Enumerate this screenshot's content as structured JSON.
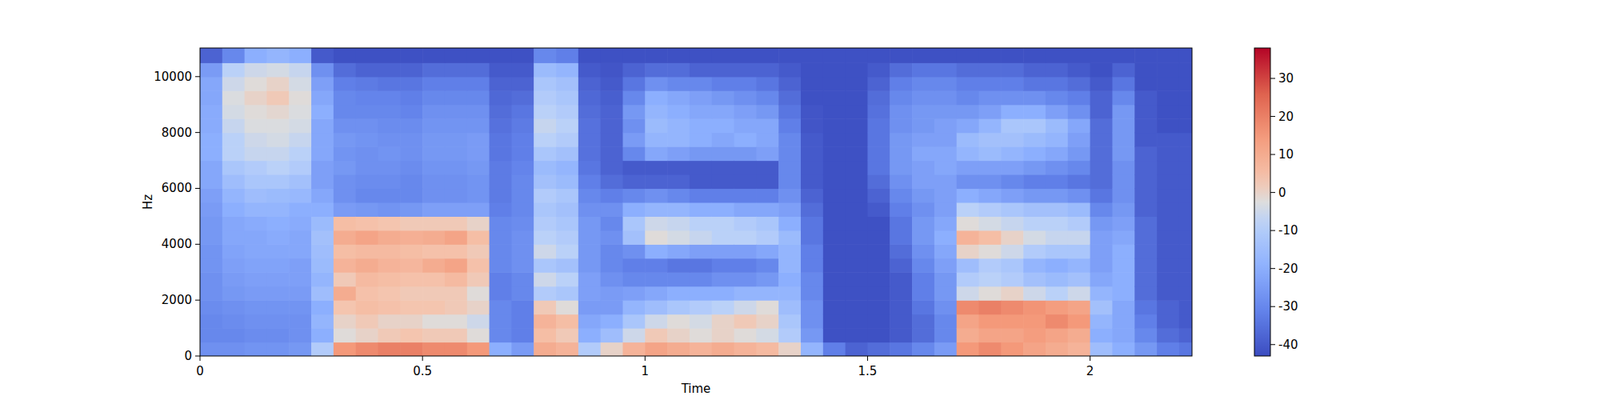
{
  "chart_data": {
    "type": "heatmap",
    "x_label": "Time",
    "y_label": "Hz",
    "xlim": [
      0,
      2.229
    ],
    "ylim": [
      0,
      11025
    ],
    "xticks": [
      0,
      0.5,
      1,
      1.5,
      2
    ],
    "yticks": [
      0,
      2000,
      4000,
      6000,
      8000,
      10000
    ],
    "x_edges": [
      0,
      0.05,
      0.1,
      0.15,
      0.2,
      0.25,
      0.3,
      0.35,
      0.4,
      0.45,
      0.5,
      0.55,
      0.6,
      0.65,
      0.7,
      0.75,
      0.8,
      0.85,
      0.9,
      0.95,
      1,
      1.05,
      1.1,
      1.15,
      1.2,
      1.25,
      1.3,
      1.35,
      1.4,
      1.45,
      1.5,
      1.55,
      1.6,
      1.65,
      1.7,
      1.75,
      1.8,
      1.85,
      1.9,
      1.95,
      2,
      2.05,
      2.1,
      2.15,
      2.2,
      2.25
    ],
    "y_edges": [
      0,
      500,
      1000,
      1500,
      2000,
      2500,
      3000,
      3500,
      4000,
      4500,
      5000,
      5500,
      6000,
      6500,
      7000,
      7500,
      8000,
      8500,
      9000,
      9500,
      10000,
      10500,
      11025
    ],
    "cells": [
      [
        -28,
        -30,
        -30,
        -29,
        -28,
        -28,
        -27,
        -27,
        -26,
        -26,
        -25,
        -24,
        -22,
        -22,
        -20,
        -20,
        -21,
        -21,
        -22,
        -22,
        -25,
        -38
      ],
      [
        -28,
        -30,
        -29,
        -28,
        -26,
        -25,
        -24,
        -23,
        -22,
        -22,
        -20,
        -18,
        -15,
        -12,
        -8,
        -8,
        -6,
        -4,
        -3,
        -5,
        -8,
        -30
      ],
      [
        -27,
        -29,
        -28,
        -27,
        -25,
        -24,
        -23,
        -22,
        -22,
        -21,
        -18,
        -15,
        -12,
        -10,
        -6,
        -5,
        -3,
        -2,
        0,
        -2,
        -5,
        -20
      ],
      [
        -27,
        -29,
        -28,
        -27,
        -25,
        -24,
        -23,
        -22,
        -21,
        -20,
        -18,
        -16,
        -12,
        -8,
        -6,
        -4,
        -3,
        -1,
        2,
        0,
        -4,
        -18
      ],
      [
        -26,
        -28,
        -28,
        -27,
        -25,
        -24,
        -24,
        -22,
        -22,
        -21,
        -20,
        -17,
        -14,
        -10,
        -8,
        -6,
        -4,
        -3,
        -2,
        -4,
        -6,
        -20
      ],
      [
        -10,
        -20,
        -18,
        -20,
        -15,
        -18,
        -16,
        -15,
        -14,
        -16,
        -20,
        -22,
        -24,
        -24,
        -22,
        -22,
        -22,
        -20,
        -22,
        -24,
        -28,
        -40
      ],
      [
        15,
        -2,
        0,
        3,
        10,
        2,
        8,
        5,
        10,
        5,
        -25,
        -28,
        -28,
        -26,
        -27,
        -26,
        -28,
        -30,
        -30,
        -32,
        -36,
        -42
      ],
      [
        18,
        0,
        2,
        5,
        4,
        6,
        10,
        6,
        12,
        4,
        -26,
        -30,
        -29,
        -28,
        -28,
        -27,
        -28,
        -30,
        -31,
        -33,
        -38,
        -42
      ],
      [
        20,
        2,
        0,
        4,
        3,
        5,
        8,
        6,
        10,
        3,
        -27,
        -30,
        -29,
        -28,
        -27,
        -28,
        -29,
        -30,
        -31,
        -34,
        -38,
        -42
      ],
      [
        20,
        3,
        0,
        3,
        2,
        4,
        7,
        5,
        9,
        2,
        -26,
        -30,
        -30,
        -29,
        -28,
        -28,
        -29,
        -31,
        -32,
        -34,
        -38,
        -42
      ],
      [
        18,
        2,
        -2,
        3,
        2,
        4,
        10,
        4,
        10,
        2,
        -24,
        -28,
        -28,
        -27,
        -26,
        -26,
        -27,
        -28,
        -30,
        -32,
        -36,
        -42
      ],
      [
        18,
        2,
        -2,
        2,
        2,
        6,
        12,
        4,
        12,
        2,
        -24,
        -28,
        -28,
        -27,
        -26,
        -26,
        -27,
        -28,
        -30,
        -32,
        -36,
        -42
      ],
      [
        15,
        -2,
        -5,
        0,
        -2,
        2,
        4,
        2,
        5,
        0,
        -24,
        -27,
        -27,
        -26,
        -25,
        -25,
        -27,
        -28,
        -30,
        -32,
        -36,
        -42
      ],
      [
        -20,
        -30,
        -30,
        -30,
        -32,
        -32,
        -30,
        -30,
        -30,
        -30,
        -32,
        -33,
        -33,
        -33,
        -34,
        -34,
        -35,
        -36,
        -37,
        -38,
        -40,
        -42
      ],
      [
        -25,
        -32,
        -32,
        -32,
        -30,
        -30,
        -28,
        -28,
        -28,
        -29,
        -30,
        -30,
        -30,
        -31,
        -32,
        -32,
        -33,
        -34,
        -36,
        -38,
        -40,
        -42
      ],
      [
        10,
        5,
        8,
        2,
        -10,
        -5,
        -12,
        -5,
        -8,
        -10,
        -12,
        -10,
        -14,
        -16,
        -12,
        -8,
        -6,
        -8,
        -10,
        -12,
        -16,
        -30
      ],
      [
        8,
        2,
        5,
        -2,
        -12,
        -8,
        -14,
        -8,
        -10,
        -12,
        -14,
        -12,
        -16,
        -18,
        -14,
        -10,
        -8,
        -10,
        -12,
        -14,
        -18,
        -32
      ],
      [
        -10,
        -20,
        -22,
        -25,
        -24,
        -24,
        -26,
        -26,
        -26,
        -26,
        -28,
        -30,
        -32,
        -34,
        -35,
        -35,
        -35,
        -36,
        -37,
        -38,
        -40,
        -42
      ],
      [
        0,
        -15,
        -20,
        -25,
        -25,
        -28,
        -30,
        -30,
        -28,
        -30,
        -28,
        -32,
        -36,
        -38,
        -38,
        -38,
        -38,
        -38,
        -39,
        -40,
        -41,
        -42
      ],
      [
        8,
        -5,
        -12,
        -18,
        -24,
        -30,
        -32,
        -28,
        -14,
        -12,
        -20,
        -30,
        -38,
        -40,
        -30,
        -25,
        -28,
        -26,
        -30,
        -34,
        -38,
        -42
      ],
      [
        12,
        2,
        -5,
        -15,
        -22,
        -30,
        -32,
        -20,
        -2,
        -5,
        -18,
        -28,
        -38,
        -40,
        -22,
        -18,
        -16,
        -18,
        -20,
        -28,
        -36,
        -42
      ],
      [
        10,
        0,
        -2,
        -12,
        -20,
        -30,
        -34,
        -22,
        -4,
        -6,
        -18,
        -30,
        -38,
        -40,
        -24,
        -18,
        -18,
        -20,
        -22,
        -30,
        -36,
        -42
      ],
      [
        8,
        -2,
        -4,
        -10,
        -20,
        -30,
        -34,
        -24,
        -6,
        -8,
        -20,
        -32,
        -40,
        -40,
        -26,
        -20,
        -20,
        -22,
        -24,
        -30,
        -38,
        -42
      ],
      [
        10,
        0,
        0,
        -8,
        -20,
        -28,
        -32,
        -24,
        -8,
        -8,
        -20,
        -32,
        -40,
        -40,
        -26,
        -22,
        -20,
        -22,
        -26,
        -32,
        -38,
        -42
      ],
      [
        8,
        -2,
        2,
        -5,
        -18,
        -28,
        -32,
        -24,
        -8,
        -10,
        -22,
        -32,
        -40,
        -40,
        -26,
        -20,
        -22,
        -24,
        -28,
        -32,
        -38,
        -42
      ],
      [
        6,
        -4,
        0,
        -2,
        -18,
        -26,
        -30,
        -22,
        -10,
        -12,
        -22,
        -32,
        -40,
        -40,
        -24,
        -22,
        -22,
        -26,
        -30,
        -34,
        -38,
        -42
      ],
      [
        0,
        -10,
        -12,
        -15,
        -18,
        -20,
        -18,
        -18,
        -16,
        -20,
        -24,
        -28,
        -30,
        -30,
        -30,
        -30,
        -32,
        -34,
        -36,
        -38,
        -40,
        -42
      ],
      [
        -18,
        -26,
        -28,
        -28,
        -30,
        -30,
        -32,
        -32,
        -34,
        -34,
        -36,
        -38,
        -40,
        -40,
        -40,
        -40,
        -41,
        -41,
        -42,
        -42,
        -42,
        -42
      ],
      [
        -32,
        -42,
        -42,
        -42,
        -42,
        -42,
        -42,
        -42,
        -42,
        -42,
        -42,
        -42,
        -42,
        -42,
        -42,
        -42,
        -42,
        -42,
        -42,
        -42,
        -42,
        -42
      ],
      [
        -38,
        -42,
        -42,
        -42,
        -42,
        -42,
        -42,
        -42,
        -42,
        -42,
        -42,
        -42,
        -42,
        -42,
        -42,
        -42,
        -42,
        -42,
        -42,
        -42,
        -42,
        -42
      ],
      [
        -36,
        -42,
        -42,
        -42,
        -42,
        -42,
        -42,
        -42,
        -42,
        -42,
        -40,
        -38,
        -36,
        -34,
        -34,
        -34,
        -34,
        -35,
        -36,
        -38,
        -40,
        -42
      ],
      [
        -34,
        -40,
        -40,
        -40,
        -40,
        -40,
        -38,
        -36,
        -34,
        -34,
        -32,
        -30,
        -28,
        -26,
        -26,
        -26,
        -28,
        -28,
        -30,
        -32,
        -36,
        -42
      ],
      [
        -30,
        -36,
        -36,
        -34,
        -32,
        -32,
        -30,
        -28,
        -26,
        -26,
        -28,
        -26,
        -24,
        -24,
        -22,
        -24,
        -26,
        -26,
        -28,
        -30,
        -34,
        -42
      ],
      [
        -25,
        -30,
        -30,
        -28,
        -26,
        -26,
        -24,
        -22,
        -20,
        -22,
        -24,
        -24,
        -24,
        -22,
        -22,
        -24,
        -24,
        -26,
        -28,
        -30,
        -34,
        -42
      ],
      [
        15,
        10,
        12,
        18,
        -5,
        -10,
        -15,
        0,
        8,
        -2,
        -8,
        -20,
        -28,
        -24,
        -18,
        -16,
        -22,
        -26,
        -30,
        -32,
        -36,
        -42
      ],
      [
        18,
        12,
        15,
        20,
        -2,
        -8,
        -10,
        -2,
        5,
        -4,
        -10,
        -22,
        -28,
        -24,
        -16,
        -14,
        -18,
        -24,
        -28,
        -32,
        -36,
        -42
      ],
      [
        15,
        12,
        15,
        18,
        0,
        -10,
        -12,
        -5,
        0,
        -6,
        -12,
        -24,
        -30,
        -24,
        -18,
        -14,
        -12,
        -20,
        -28,
        -32,
        -36,
        -42
      ],
      [
        12,
        14,
        15,
        16,
        -5,
        -14,
        -18,
        -10,
        -4,
        -8,
        -14,
        -26,
        -32,
        -26,
        -20,
        -16,
        -12,
        -20,
        -28,
        -34,
        -38,
        -42
      ],
      [
        10,
        12,
        18,
        14,
        -8,
        -16,
        -20,
        -12,
        -6,
        -8,
        -14,
        -26,
        -32,
        -28,
        -22,
        -18,
        -16,
        -24,
        -30,
        -34,
        -38,
        -42
      ],
      [
        8,
        10,
        15,
        12,
        -5,
        -14,
        -18,
        -12,
        -6,
        -10,
        -16,
        -28,
        -34,
        -30,
        -26,
        -24,
        -22,
        -28,
        -32,
        -36,
        -40,
        -42
      ],
      [
        -15,
        -20,
        -18,
        -14,
        -18,
        -22,
        -24,
        -24,
        -24,
        -26,
        -30,
        -34,
        -36,
        -36,
        -36,
        -36,
        -36,
        -38,
        -38,
        -40,
        -42,
        -42
      ],
      [
        -20,
        -22,
        -22,
        -22,
        -20,
        -20,
        -20,
        -20,
        -22,
        -24,
        -26,
        -28,
        -28,
        -28,
        -26,
        -26,
        -26,
        -26,
        -30,
        -34,
        -38,
        -42
      ],
      [
        -26,
        -30,
        -32,
        -34,
        -36,
        -36,
        -36,
        -36,
        -36,
        -36,
        -38,
        -38,
        -38,
        -38,
        -38,
        -40,
        -40,
        -40,
        -40,
        -42,
        -42,
        -42
      ],
      [
        -32,
        -36,
        -38,
        -38,
        -40,
        -40,
        -40,
        -40,
        -40,
        -40,
        -40,
        -40,
        -40,
        -40,
        -40,
        -40,
        -42,
        -42,
        -42,
        -42,
        -42,
        -42
      ],
      [
        -34,
        -38,
        -40,
        -40,
        -40,
        -40,
        -40,
        -40,
        -40,
        -40,
        -40,
        -40,
        -40,
        -40,
        -40,
        -40,
        -42,
        -42,
        -42,
        -42,
        -42,
        -42
      ]
    ],
    "colorbar": {
      "range": [
        -43,
        38
      ],
      "ticks": [
        -40,
        -30,
        -20,
        -10,
        0,
        10,
        20,
        30
      ]
    }
  }
}
